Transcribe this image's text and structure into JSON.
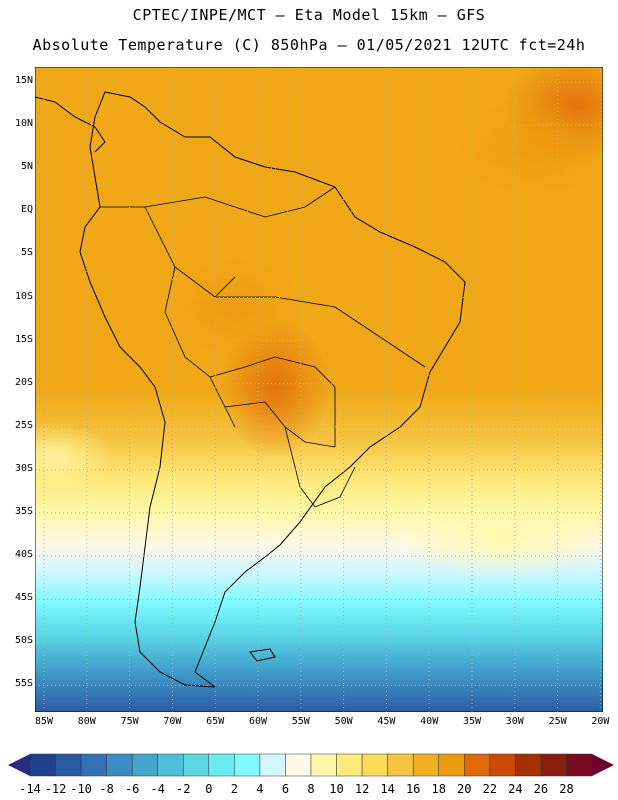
{
  "header": {
    "title_line1": "CPTEC/INPE/MCT –  Eta Model 15km – GFS",
    "title_line2": "Absolute Temperature (C) 850hPa – 01/05/2021 12UTC fct=24h"
  },
  "map": {
    "lat_labels": [
      "15N",
      "10N",
      "5N",
      "EQ",
      "5S",
      "10S",
      "15S",
      "20S",
      "25S",
      "30S",
      "35S",
      "40S",
      "45S",
      "50S",
      "55S"
    ],
    "lon_labels": [
      "85W",
      "80W",
      "75W",
      "70W",
      "65W",
      "60W",
      "55W",
      "50W",
      "45W",
      "40W",
      "35W",
      "30W",
      "25W",
      "20W"
    ],
    "grid": "dotted",
    "colors": {
      "land_border": "#000000",
      "grid_line": "#b0b0b0"
    }
  },
  "colorbar": {
    "labels": [
      "-14",
      "-12",
      "-10",
      "-8",
      "-6",
      "-4",
      "-2",
      "0",
      "2",
      "4",
      "6",
      "8",
      "10",
      "12",
      "14",
      "16",
      "18",
      "20",
      "22",
      "24",
      "26",
      "28"
    ],
    "colors": [
      "#1f3f8f",
      "#2b5aa5",
      "#3373b5",
      "#3a8cc3",
      "#42a5cd",
      "#4dbfd9",
      "#5ed7e6",
      "#6bebf2",
      "#7ffaff",
      "#d4f7ff",
      "#fff8e6",
      "#fff8a8",
      "#ffe97a",
      "#fdd95c",
      "#f5c542",
      "#f0b020",
      "#ee9a10",
      "#e06a0a",
      "#cc4a05",
      "#a63004",
      "#8a1e0a",
      "#7a0a20"
    ]
  }
}
